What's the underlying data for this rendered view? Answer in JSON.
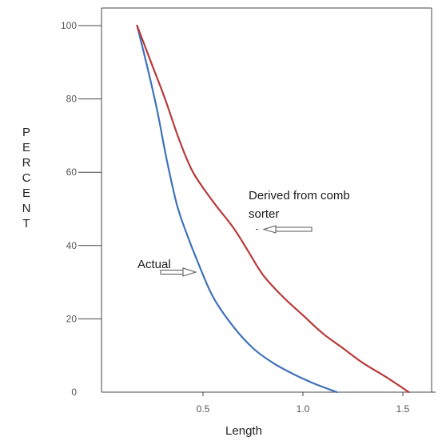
{
  "chart_data": {
    "type": "line",
    "xlabel": "Length",
    "ylabel": "PERCENT",
    "xlim": [
      0.0,
      1.62
    ],
    "ylim": [
      0,
      100
    ],
    "x_ticks": [
      {
        "value": 0.5,
        "label": "0.5"
      },
      {
        "value": 1.0,
        "label": "1.0"
      },
      {
        "value": 1.5,
        "label": "1.5"
      }
    ],
    "y_ticks": [
      {
        "value": 0,
        "label": "0"
      },
      {
        "value": 20,
        "label": "20"
      },
      {
        "value": 40,
        "label": "40"
      },
      {
        "value": 60,
        "label": "60"
      },
      {
        "value": 80,
        "label": "80"
      },
      {
        "value": 100,
        "label": "100"
      }
    ],
    "series": [
      {
        "name": "Actual",
        "color": "#3f72b8",
        "points": [
          [
            0.17,
            100
          ],
          [
            0.22,
            89
          ],
          [
            0.27,
            77
          ],
          [
            0.32,
            63
          ],
          [
            0.37,
            51
          ],
          [
            0.42,
            43
          ],
          [
            0.47,
            36
          ],
          [
            0.55,
            26
          ],
          [
            0.65,
            18
          ],
          [
            0.75,
            12
          ],
          [
            0.85,
            8
          ],
          [
            0.95,
            5
          ],
          [
            1.05,
            2.5
          ],
          [
            1.17,
            0
          ]
        ]
      },
      {
        "name": "Derived from comb sorter",
        "color": "#b83a3a",
        "points": [
          [
            0.17,
            100
          ],
          [
            0.24,
            90
          ],
          [
            0.31,
            80
          ],
          [
            0.38,
            69
          ],
          [
            0.45,
            60
          ],
          [
            0.55,
            52
          ],
          [
            0.65,
            45
          ],
          [
            0.72,
            39
          ],
          [
            0.8,
            32
          ],
          [
            0.9,
            26
          ],
          [
            1.0,
            21
          ],
          [
            1.1,
            16
          ],
          [
            1.2,
            12
          ],
          [
            1.3,
            8
          ],
          [
            1.42,
            4
          ],
          [
            1.53,
            0
          ]
        ]
      }
    ],
    "annotations": [
      {
        "text": "Actual",
        "target_series": 0
      },
      {
        "text": "Derived from comb",
        "target_series": 1
      },
      {
        "text": "sorter",
        "target_series": 1
      }
    ]
  }
}
